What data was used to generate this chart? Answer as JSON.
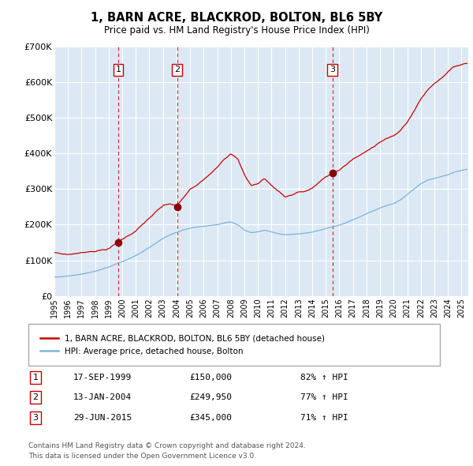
{
  "title": "1, BARN ACRE, BLACKROD, BOLTON, BL6 5BY",
  "subtitle": "Price paid vs. HM Land Registry's House Price Index (HPI)",
  "hpi_label": "HPI: Average price, detached house, Bolton",
  "price_label": "1, BARN ACRE, BLACKROD, BOLTON, BL6 5BY (detached house)",
  "sales": [
    {
      "num": 1,
      "date": "17-SEP-1999",
      "year": 1999.71,
      "price": 150000,
      "pct": "82% ↑ HPI"
    },
    {
      "num": 2,
      "date": "13-JAN-2004",
      "year": 2004.04,
      "price": 249950,
      "pct": "77% ↑ HPI"
    },
    {
      "num": 3,
      "date": "29-JUN-2015",
      "year": 2015.49,
      "price": 345000,
      "pct": "71% ↑ HPI"
    }
  ],
  "footer1": "Contains HM Land Registry data © Crown copyright and database right 2024.",
  "footer2": "This data is licensed under the Open Government Licence v3.0.",
  "ylim": [
    0,
    700000
  ],
  "yticks": [
    0,
    100000,
    200000,
    300000,
    400000,
    500000,
    600000,
    700000
  ],
  "ytick_labels": [
    "£0",
    "£100K",
    "£200K",
    "£300K",
    "£400K",
    "£500K",
    "£600K",
    "£700K"
  ],
  "xlim": [
    1995,
    2025.5
  ],
  "background_color": "#ffffff",
  "chart_bg_color": "#dce9f5",
  "grid_color": "#ffffff",
  "hpi_color": "#7ab4d8",
  "price_color": "#cc0000",
  "sale_dot_color": "#8b0000",
  "vline_color": "#cc0000",
  "legend_border_color": "#aaaaaa",
  "footer_color": "#555555"
}
